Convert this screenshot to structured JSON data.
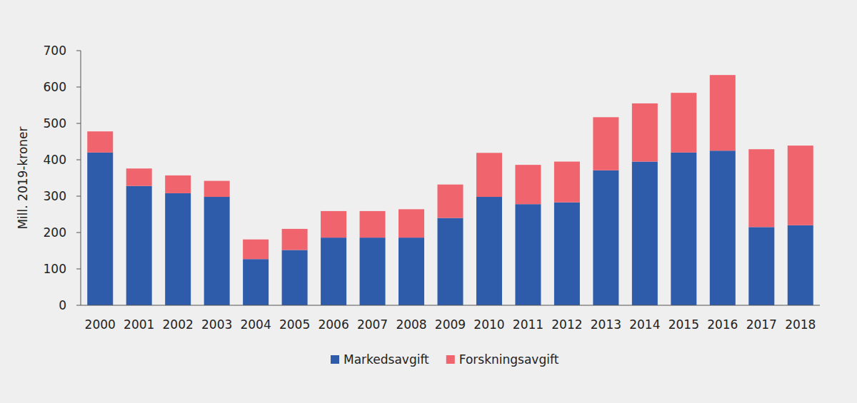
{
  "chart_data": {
    "type": "bar",
    "stacked": true,
    "grid": false,
    "legend": "bottom",
    "y_label": "Mill. 2019-kroner",
    "categories": [
      "2000",
      "2001",
      "2002",
      "2003",
      "2004",
      "2005",
      "2006",
      "2007",
      "2008",
      "2009",
      "2010",
      "2011",
      "2012",
      "2013",
      "2014",
      "2015",
      "2016",
      "2017",
      "2018"
    ],
    "series": [
      {
        "name": "Markedsavgift",
        "color": "#2e5caa",
        "values": [
          420,
          328,
          308,
          298,
          127,
          152,
          186,
          186,
          186,
          240,
          298,
          278,
          283,
          371,
          395,
          420,
          425,
          215,
          220
        ]
      },
      {
        "name": "Forskningsavgift",
        "color": "#f0646e",
        "values": [
          58,
          48,
          49,
          44,
          54,
          58,
          73,
          73,
          78,
          92,
          121,
          108,
          112,
          146,
          160,
          164,
          208,
          214,
          219
        ]
      }
    ],
    "ylim": [
      0,
      700
    ],
    "yticks": [
      0,
      100,
      200,
      300,
      400,
      500,
      600,
      700
    ]
  }
}
